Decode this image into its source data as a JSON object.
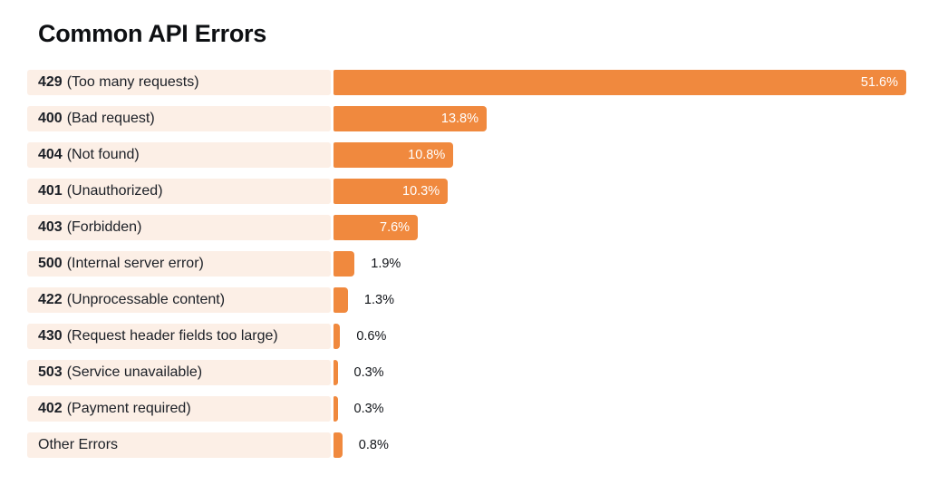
{
  "chart_data": {
    "type": "bar",
    "orientation": "horizontal",
    "title": "Common API Errors",
    "unit": "%",
    "xlim": [
      0,
      51.6
    ],
    "grid": false,
    "legend": false,
    "categories": [
      "429 (Too many requests)",
      "400 (Bad request)",
      "404 (Not found)",
      "401 (Unauthorized)",
      "403 (Forbidden)",
      "500 (Internal server error)",
      "422 (Unprocessable content)",
      "430 (Request header fields too large)",
      "503 (Service unavailable)",
      "402 (Payment required)",
      "Other Errors"
    ],
    "values": [
      51.6,
      13.8,
      10.8,
      10.3,
      7.6,
      1.9,
      1.3,
      0.6,
      0.3,
      0.3,
      0.8
    ],
    "items": [
      {
        "code": "429",
        "description": "(Too many requests)",
        "value": 51.6,
        "label": "51.6%"
      },
      {
        "code": "400",
        "description": "(Bad request)",
        "value": 13.8,
        "label": "13.8%"
      },
      {
        "code": "404",
        "description": "(Not found)",
        "value": 10.8,
        "label": "10.8%"
      },
      {
        "code": "401",
        "description": "(Unauthorized)",
        "value": 10.3,
        "label": "10.3%"
      },
      {
        "code": "403",
        "description": "(Forbidden)",
        "value": 7.6,
        "label": "7.6%"
      },
      {
        "code": "500",
        "description": "(Internal server error)",
        "value": 1.9,
        "label": "1.9%"
      },
      {
        "code": "422",
        "description": "(Unprocessable content)",
        "value": 1.3,
        "label": "1.3%"
      },
      {
        "code": "430",
        "description": "(Request header fields too large)",
        "value": 0.6,
        "label": "0.6%"
      },
      {
        "code": "503",
        "description": "(Service unavailable)",
        "value": 0.3,
        "label": "0.3%"
      },
      {
        "code": "402",
        "description": "(Payment required)",
        "value": 0.3,
        "label": "0.3%"
      },
      {
        "code": "",
        "description": "Other Errors",
        "value": 0.8,
        "label": "0.8%"
      }
    ],
    "colors": {
      "bar": "#F0893E",
      "label_background": "#FCEFE6",
      "title_text": "#0E1013",
      "label_text": "#1B1F26",
      "value_inside": "#FFFFFF",
      "value_outside": "#101318",
      "page_background": "#FFFFFF"
    },
    "value_label_placement_rule": "inside bar (white) when value >= 7, outside bar (dark) otherwise"
  }
}
